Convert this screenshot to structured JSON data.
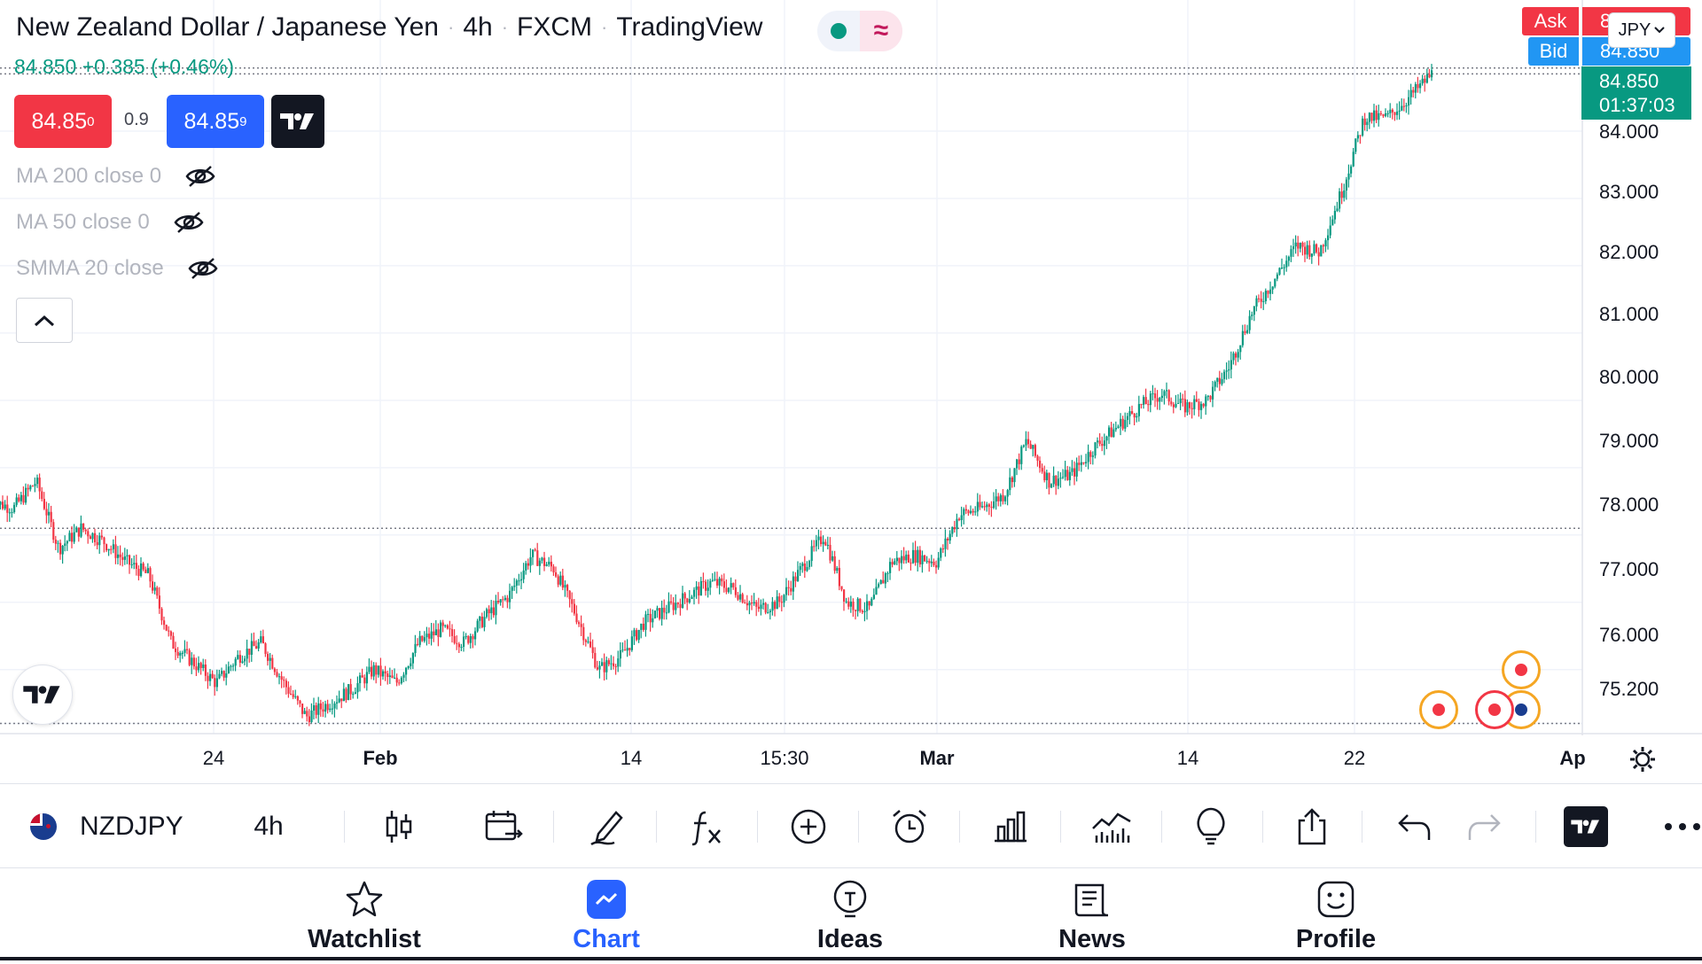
{
  "header": {
    "symbol_name": "New Zealand Dollar / Japanese Yen",
    "interval": "4h",
    "exchange": "FXCM",
    "source": "TradingView",
    "market_status_icon": "market-open-dot",
    "delay_icon": "approx-wave-icon"
  },
  "quote": {
    "price_change": "84.850 +0.385 (+0.46%)",
    "ask_main": "84.85",
    "ask_sup": "0",
    "spread": "0.9",
    "bid_main": "84.85",
    "bid_sup": "9"
  },
  "indicators": [
    {
      "label": "MA 200 close 0"
    },
    {
      "label": "MA 50 close 0"
    },
    {
      "label": "SMMA 20 close"
    }
  ],
  "price_scale": {
    "ask_tag": "Ask",
    "ask_value": "84.859",
    "bid_tag": "Bid",
    "bid_value": "84.850",
    "currency": "JPY",
    "last_price": "84.850",
    "countdown": "01:37:03",
    "labels": [
      "84.000",
      "83.000",
      "82.000",
      "81.000",
      "80.000",
      "79.000",
      "78.000",
      "77.000",
      "76.000",
      "75.200"
    ]
  },
  "time_axis": {
    "labels": [
      "24",
      "Feb",
      "14",
      "15:30",
      "Mar",
      "14",
      "22",
      "Ap"
    ],
    "bold_labels": [
      "Feb",
      "Mar"
    ]
  },
  "colors": {
    "up": "#089981",
    "down": "#f23645",
    "accent": "#2962ff",
    "ask": "#f23645",
    "bid": "#2196f3"
  },
  "toolbar": {
    "symbol": "NZDJPY",
    "interval": "4h",
    "icons": [
      "candles-icon",
      "compare-calendar-icon",
      "draw-pen-icon",
      "indicators-fx-icon",
      "add-circle-icon",
      "alarm-clock-icon",
      "bar-chart-icon",
      "financials-icon",
      "idea-bulb-icon",
      "share-icon",
      "undo-icon",
      "redo-icon",
      "tradingview-logo-icon",
      "more-dots-icon"
    ]
  },
  "bottom_nav": [
    {
      "label": "Watchlist",
      "icon": "star-icon"
    },
    {
      "label": "Chart",
      "icon": "chart-icon",
      "active": true
    },
    {
      "label": "Ideas",
      "icon": "ideas-bulb-icon"
    },
    {
      "label": "News",
      "icon": "news-icon"
    },
    {
      "label": "Profile",
      "icon": "profile-smile-icon"
    }
  ],
  "chart_data": {
    "type": "candlestick",
    "title": "",
    "xlabel": "",
    "ylabel": "",
    "ylim": [
      74.6,
      85.3
    ],
    "x_ticks": [
      "24",
      "Feb",
      "14",
      "15:30",
      "Mar",
      "14",
      "22",
      "Ap"
    ],
    "y_ticks": [
      75.2,
      76,
      77,
      78,
      79,
      80,
      81,
      82,
      83,
      84
    ],
    "series": [
      {
        "values": [
          [
            -10,
            78.5
          ],
          [
            0,
            78.4
          ],
          [
            10,
            78.8
          ],
          [
            20,
            77.8
          ],
          [
            30,
            78.1
          ],
          [
            40,
            77.9
          ],
          [
            50,
            77.6
          ],
          [
            60,
            77.4
          ],
          [
            70,
            76.4
          ],
          [
            80,
            76.1
          ],
          [
            90,
            75.8
          ],
          [
            100,
            76.2
          ],
          [
            110,
            76.4
          ],
          [
            120,
            75.8
          ],
          [
            130,
            75.3
          ],
          [
            140,
            75.5
          ],
          [
            150,
            75.7
          ],
          [
            160,
            76.0
          ],
          [
            170,
            75.8
          ],
          [
            180,
            76.4
          ],
          [
            190,
            76.6
          ],
          [
            200,
            76.4
          ],
          [
            210,
            76.8
          ],
          [
            220,
            77.1
          ],
          [
            230,
            77.7
          ],
          [
            240,
            77.5
          ],
          [
            250,
            76.8
          ],
          [
            260,
            76.0
          ],
          [
            270,
            76.2
          ],
          [
            280,
            76.7
          ],
          [
            290,
            76.9
          ],
          [
            300,
            77.1
          ],
          [
            310,
            77.3
          ],
          [
            320,
            77.2
          ],
          [
            330,
            76.9
          ],
          [
            340,
            77.0
          ],
          [
            350,
            77.5
          ],
          [
            360,
            78.0
          ],
          [
            370,
            77.0
          ],
          [
            380,
            76.9
          ],
          [
            390,
            77.6
          ],
          [
            400,
            77.7
          ],
          [
            410,
            77.6
          ],
          [
            420,
            78.3
          ],
          [
            430,
            78.4
          ],
          [
            440,
            78.6
          ],
          [
            450,
            79.4
          ],
          [
            460,
            78.8
          ],
          [
            470,
            78.9
          ],
          [
            480,
            79.3
          ],
          [
            490,
            79.6
          ],
          [
            500,
            79.9
          ],
          [
            510,
            80.1
          ],
          [
            520,
            79.9
          ],
          [
            530,
            80.0
          ],
          [
            540,
            80.5
          ],
          [
            550,
            81.3
          ],
          [
            560,
            81.8
          ],
          [
            570,
            82.3
          ],
          [
            580,
            82.2
          ],
          [
            590,
            83.1
          ],
          [
            600,
            84.2
          ],
          [
            610,
            84.2
          ],
          [
            620,
            84.5
          ],
          [
            630,
            84.85
          ]
        ]
      }
    ]
  }
}
